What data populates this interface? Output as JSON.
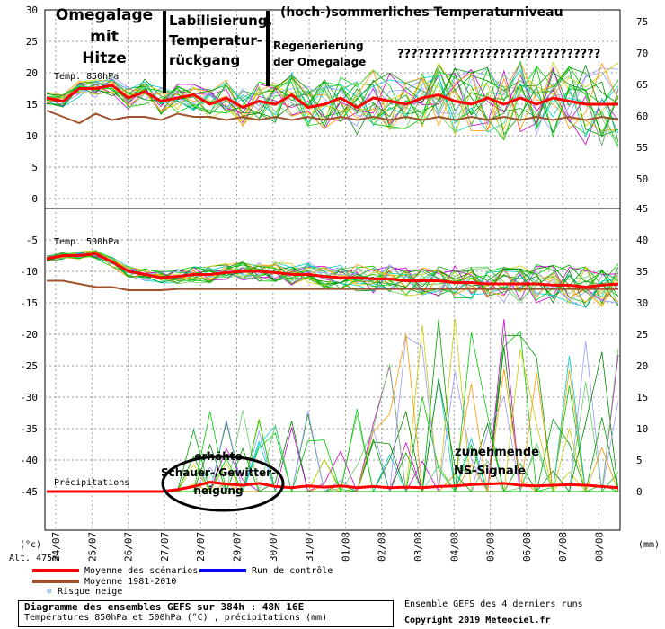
{
  "chart_data": {
    "type": "line",
    "x_labels": [
      "24/07",
      "25/07",
      "26/07",
      "27/07",
      "28/07",
      "29/07",
      "30/07",
      "31/07",
      "01/08",
      "02/08",
      "03/08",
      "04/08",
      "05/08",
      "06/08",
      "07/08",
      "08/08"
    ],
    "left_axis_ticks": [
      "30",
      "25",
      "20",
      "15",
      "10",
      "5",
      "0",
      "-5",
      "-10",
      "-15",
      "-20",
      "-25",
      "-30",
      "-35",
      "-40",
      "-45"
    ],
    "right_axis_ticks_top": [
      "75",
      "70",
      "65",
      "60",
      "55",
      "50"
    ],
    "right_axis_ticks_bottom": [
      "45",
      "40",
      "35",
      "30",
      "25",
      "20",
      "15",
      "10",
      "5",
      "0"
    ],
    "unit_left": "(°c)",
    "unit_right": "(mm)",
    "altitude": "Alt. 475m",
    "panel_850_label": "Temp. 850hPa",
    "panel_500_label": "Temp. 500hPa",
    "precip_label": "Précipitations",
    "series": [
      {
        "name": "Moyenne des scénarios",
        "color": "#ff0000",
        "t850": [
          16,
          15.5,
          17.5,
          17.5,
          18,
          16,
          17,
          15.5,
          16,
          16.5,
          15,
          16,
          14.5,
          15.5,
          15,
          16.5,
          14.5,
          15,
          16,
          14.5,
          16,
          15.5,
          15,
          16,
          16.5,
          15.5,
          15,
          16,
          15,
          16,
          15,
          16,
          15.5,
          15,
          15,
          15
        ],
        "t500": [
          -8,
          -7.5,
          -7.5,
          -7.2,
          -8.5,
          -10,
          -10.5,
          -11,
          -10.8,
          -10.5,
          -10.5,
          -10.2,
          -10,
          -10,
          -10.2,
          -10.5,
          -10.5,
          -10.8,
          -11,
          -11,
          -11.2,
          -11.2,
          -11.5,
          -11.5,
          -11.5,
          -11.8,
          -11.8,
          -12,
          -12,
          -12,
          -12,
          -12.2,
          -12.2,
          -12.5,
          -12.2,
          -12
        ],
        "precip": [
          0,
          0,
          0,
          0,
          0,
          0,
          0,
          0,
          0.3,
          0.8,
          1.5,
          1.2,
          1,
          1.3,
          0.8,
          0.6,
          0.9,
          0.7,
          0.9,
          0.6,
          0.8,
          0.6,
          0.7,
          0.6,
          0.8,
          0.9,
          1.1,
          1.2,
          1.3,
          1.0,
          0.9,
          1.0,
          1.1,
          1.0,
          0.8,
          0.6
        ]
      },
      {
        "name": "Moyenne 1981-2010",
        "color": "#a0522d",
        "t850": [
          14,
          13,
          12,
          13.5,
          12.5,
          13,
          13,
          12.5,
          13.5,
          13,
          13,
          12.5,
          13,
          12.5,
          13,
          12.5,
          13,
          12.5,
          13,
          12.5,
          13,
          12.5,
          13,
          12.5,
          13,
          12.5,
          13,
          12.5,
          13,
          12.5,
          13,
          12.5,
          13,
          12.5,
          13,
          12.5
        ],
        "t500": [
          -11.5,
          -11.5,
          -12,
          -12.5,
          -12.5,
          -13,
          -13,
          -13,
          -12.8,
          -12.8,
          -12.8,
          -12.8,
          -12.8,
          -12.8,
          -12.8,
          -12.8,
          -12.8,
          -12.8,
          -12.8,
          -12.8,
          -12.8,
          -12.8,
          -12.8,
          -12.8,
          -12.8,
          -12.8,
          -12.8,
          -12.8,
          -12.8,
          -12.8,
          -12.8,
          -12.8,
          -12.8,
          -12.8,
          -12.8,
          -12.8
        ]
      },
      {
        "name": "Run de contrôle",
        "color": "#0000ff"
      },
      {
        "name": "Risque neige",
        "color": "#6fa8dc"
      }
    ],
    "annotations": [
      "Omegalage",
      "mit",
      "Hitze",
      "Labilisierung,",
      "Temperatur-",
      "rückgang",
      "(hoch-)sommerliches Temperaturniveau",
      "Regenerierung",
      "der Omegalage",
      "??????????????????????????????",
      "erhöhte",
      "Schauer-/Gewitter-",
      "neigung",
      "zunehmende",
      "NS-Signale"
    ]
  },
  "footer": {
    "title": "Diagramme des ensembles GEFS sur 384h : 48N 16E",
    "subtitle": "Températures 850hPa et 500hPa (°C) , précipitations (mm)",
    "runs": "Ensemble GEFS des 4 derniers runs",
    "copyright": "Copyright 2019 Meteociel.fr"
  }
}
